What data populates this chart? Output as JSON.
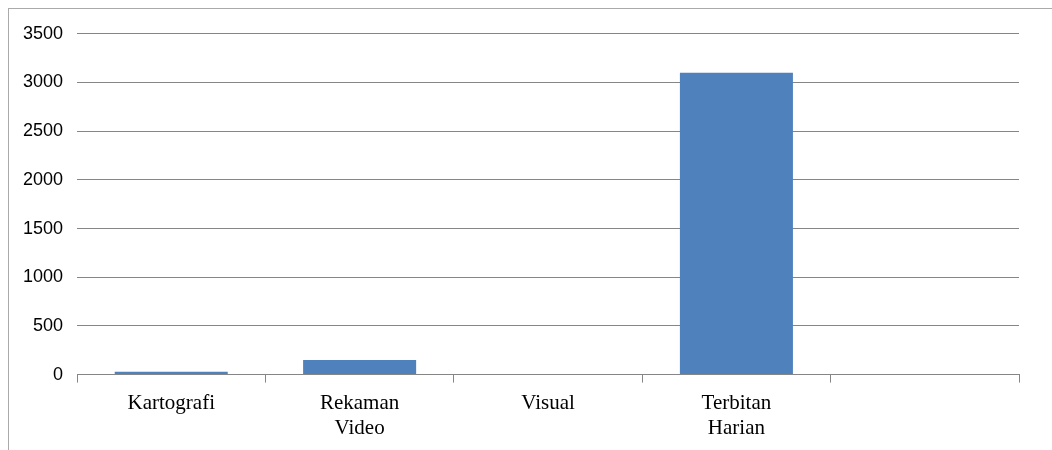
{
  "chart_data": {
    "type": "bar",
    "categories": [
      "Kartografi",
      "Rekaman Video",
      "Visual",
      "Terbitan Harian",
      null
    ],
    "values": [
      30,
      150,
      0,
      3100,
      null
    ],
    "color": "#4f81bd",
    "ylim": [
      0,
      3500
    ],
    "yticks": [
      0,
      500,
      1000,
      1500,
      2000,
      2500,
      3000,
      3500
    ],
    "grid": "y",
    "legend": false
  }
}
